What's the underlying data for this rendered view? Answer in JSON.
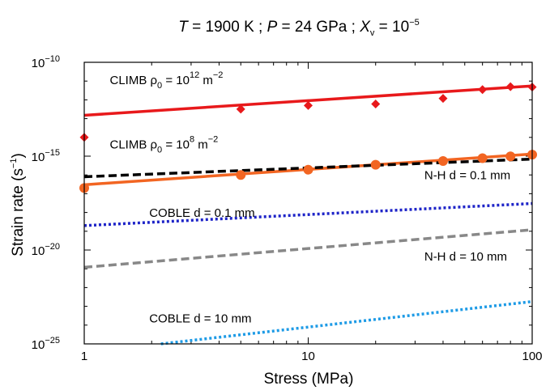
{
  "chart_data": {
    "type": "line",
    "title": {
      "t_var": "T",
      "t_val": " = 1900 K ; ",
      "p_var": "P",
      "p_val": " = 24 GPa ; ",
      "x_var": "X",
      "x_sub": "v",
      "x_val": " = 10",
      "x_exp": "−5"
    },
    "xlabel": "Stress (MPa)",
    "ylabel": {
      "text": "Strain rate (s",
      "exp": "−1",
      "close": ")"
    },
    "x_scale": "log",
    "y_scale": "log",
    "xlim": [
      1,
      100
    ],
    "ylim": [
      1e-25,
      1e-10
    ],
    "x_ticks": [
      {
        "value": 1,
        "label": "1"
      },
      {
        "value": 10,
        "label": "10"
      },
      {
        "value": 100,
        "label": "100"
      }
    ],
    "y_ticks": [
      {
        "value": 1e-25,
        "base": "10",
        "exp": "−25"
      },
      {
        "value": 1e-20,
        "base": "10",
        "exp": "−20"
      },
      {
        "value": 1e-15,
        "base": "10",
        "exp": "−15"
      },
      {
        "value": 1e-10,
        "base": "10",
        "exp": "−10"
      }
    ],
    "series": [
      {
        "key": "climb12",
        "color": "#e8191b",
        "dash": "solid",
        "fit": {
          "x": [
            1,
            100
          ],
          "y": [
            1.5e-13,
            5.5e-12
          ]
        },
        "marker": "diamond",
        "points": {
          "x": [
            1,
            5,
            10,
            20,
            40,
            60,
            80,
            100
          ],
          "y": [
            1e-14,
            3.2e-13,
            5e-13,
            6e-13,
            1.2e-12,
            3.5e-12,
            5e-12,
            4.8e-12
          ]
        }
      },
      {
        "key": "climb8",
        "color": "#f26522",
        "dash": "solid",
        "fit": {
          "x": [
            1,
            100
          ],
          "y": [
            3e-17,
            1.3e-15
          ]
        },
        "marker": "circle",
        "points": {
          "x": [
            1,
            5,
            10,
            20,
            40,
            60,
            80,
            100
          ],
          "y": [
            2e-17,
            1e-16,
            1.9e-16,
            3.5e-16,
            5.5e-16,
            7.8e-16,
            9.8e-16,
            1.2e-15
          ]
        }
      },
      {
        "key": "nh01",
        "color": "#000000",
        "dash": "dashed",
        "fit": {
          "x": [
            1,
            100
          ],
          "y": [
            8e-17,
            7e-16
          ]
        }
      },
      {
        "key": "coble01",
        "color": "#1e24c8",
        "dash": "dotted",
        "fit": {
          "x": [
            1,
            100
          ],
          "y": [
            2e-19,
            3e-18
          ]
        }
      },
      {
        "key": "nh10",
        "color": "#888888",
        "dash": "dashed",
        "fit": {
          "x": [
            1,
            100
          ],
          "y": [
            1.2e-21,
            1.2e-19
          ]
        }
      },
      {
        "key": "coble10",
        "color": "#1e9be6",
        "dash": "dotted",
        "fit": {
          "x": [
            2.2,
            100
          ],
          "y": [
            1e-25,
            1.8e-23
          ]
        }
      }
    ],
    "annotations": [
      {
        "key": "climb12",
        "text": "CLIMB ρ",
        "sub": "0",
        "mid": " = 10",
        "sup": "12",
        "tail": " m",
        "tail_sup": "−2",
        "at_x": 1.3,
        "at_y": 7e-12
      },
      {
        "key": "climb8",
        "text": "CLIMB ρ",
        "sub": "0",
        "mid": " = 10",
        "sup": "8",
        "tail": "  m",
        "tail_sup": "−2",
        "at_x": 1.3,
        "at_y": 2.6e-15
      },
      {
        "key": "nh01",
        "text": "N-H d = 0.1 mm",
        "at_x": 33,
        "at_y": 6e-17
      },
      {
        "key": "coble01",
        "text": "COBLE d = 0.1 mm",
        "at_x": 1.95,
        "at_y": 5.8e-19
      },
      {
        "key": "nh10",
        "text": "N-H d = 10 mm",
        "at_x": 33,
        "at_y": 2.8e-21
      },
      {
        "key": "coble10",
        "text": "COBLE d = 10 mm",
        "at_x": 1.95,
        "at_y": 1.4e-24
      }
    ]
  }
}
